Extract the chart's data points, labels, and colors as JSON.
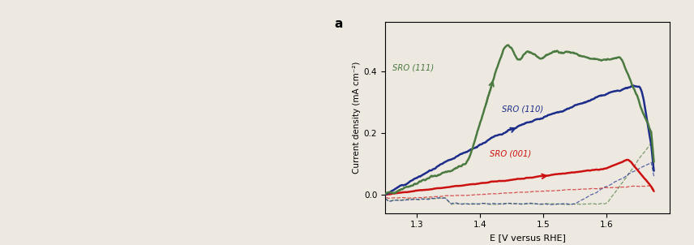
{
  "title": "a",
  "xlabel": "E [V versus RHE]",
  "ylabel": "Current density (mA cm⁻²)",
  "xlim": [
    1.25,
    1.7
  ],
  "ylim": [
    -0.06,
    0.56
  ],
  "yticks": [
    0.0,
    0.2,
    0.4
  ],
  "xticks": [
    1.3,
    1.4,
    1.5,
    1.6
  ],
  "colors": {
    "sro111": "#4a7a40",
    "sro110": "#1c2d8a",
    "sro001": "#cc1111"
  },
  "bg_color": "#ede8e0"
}
